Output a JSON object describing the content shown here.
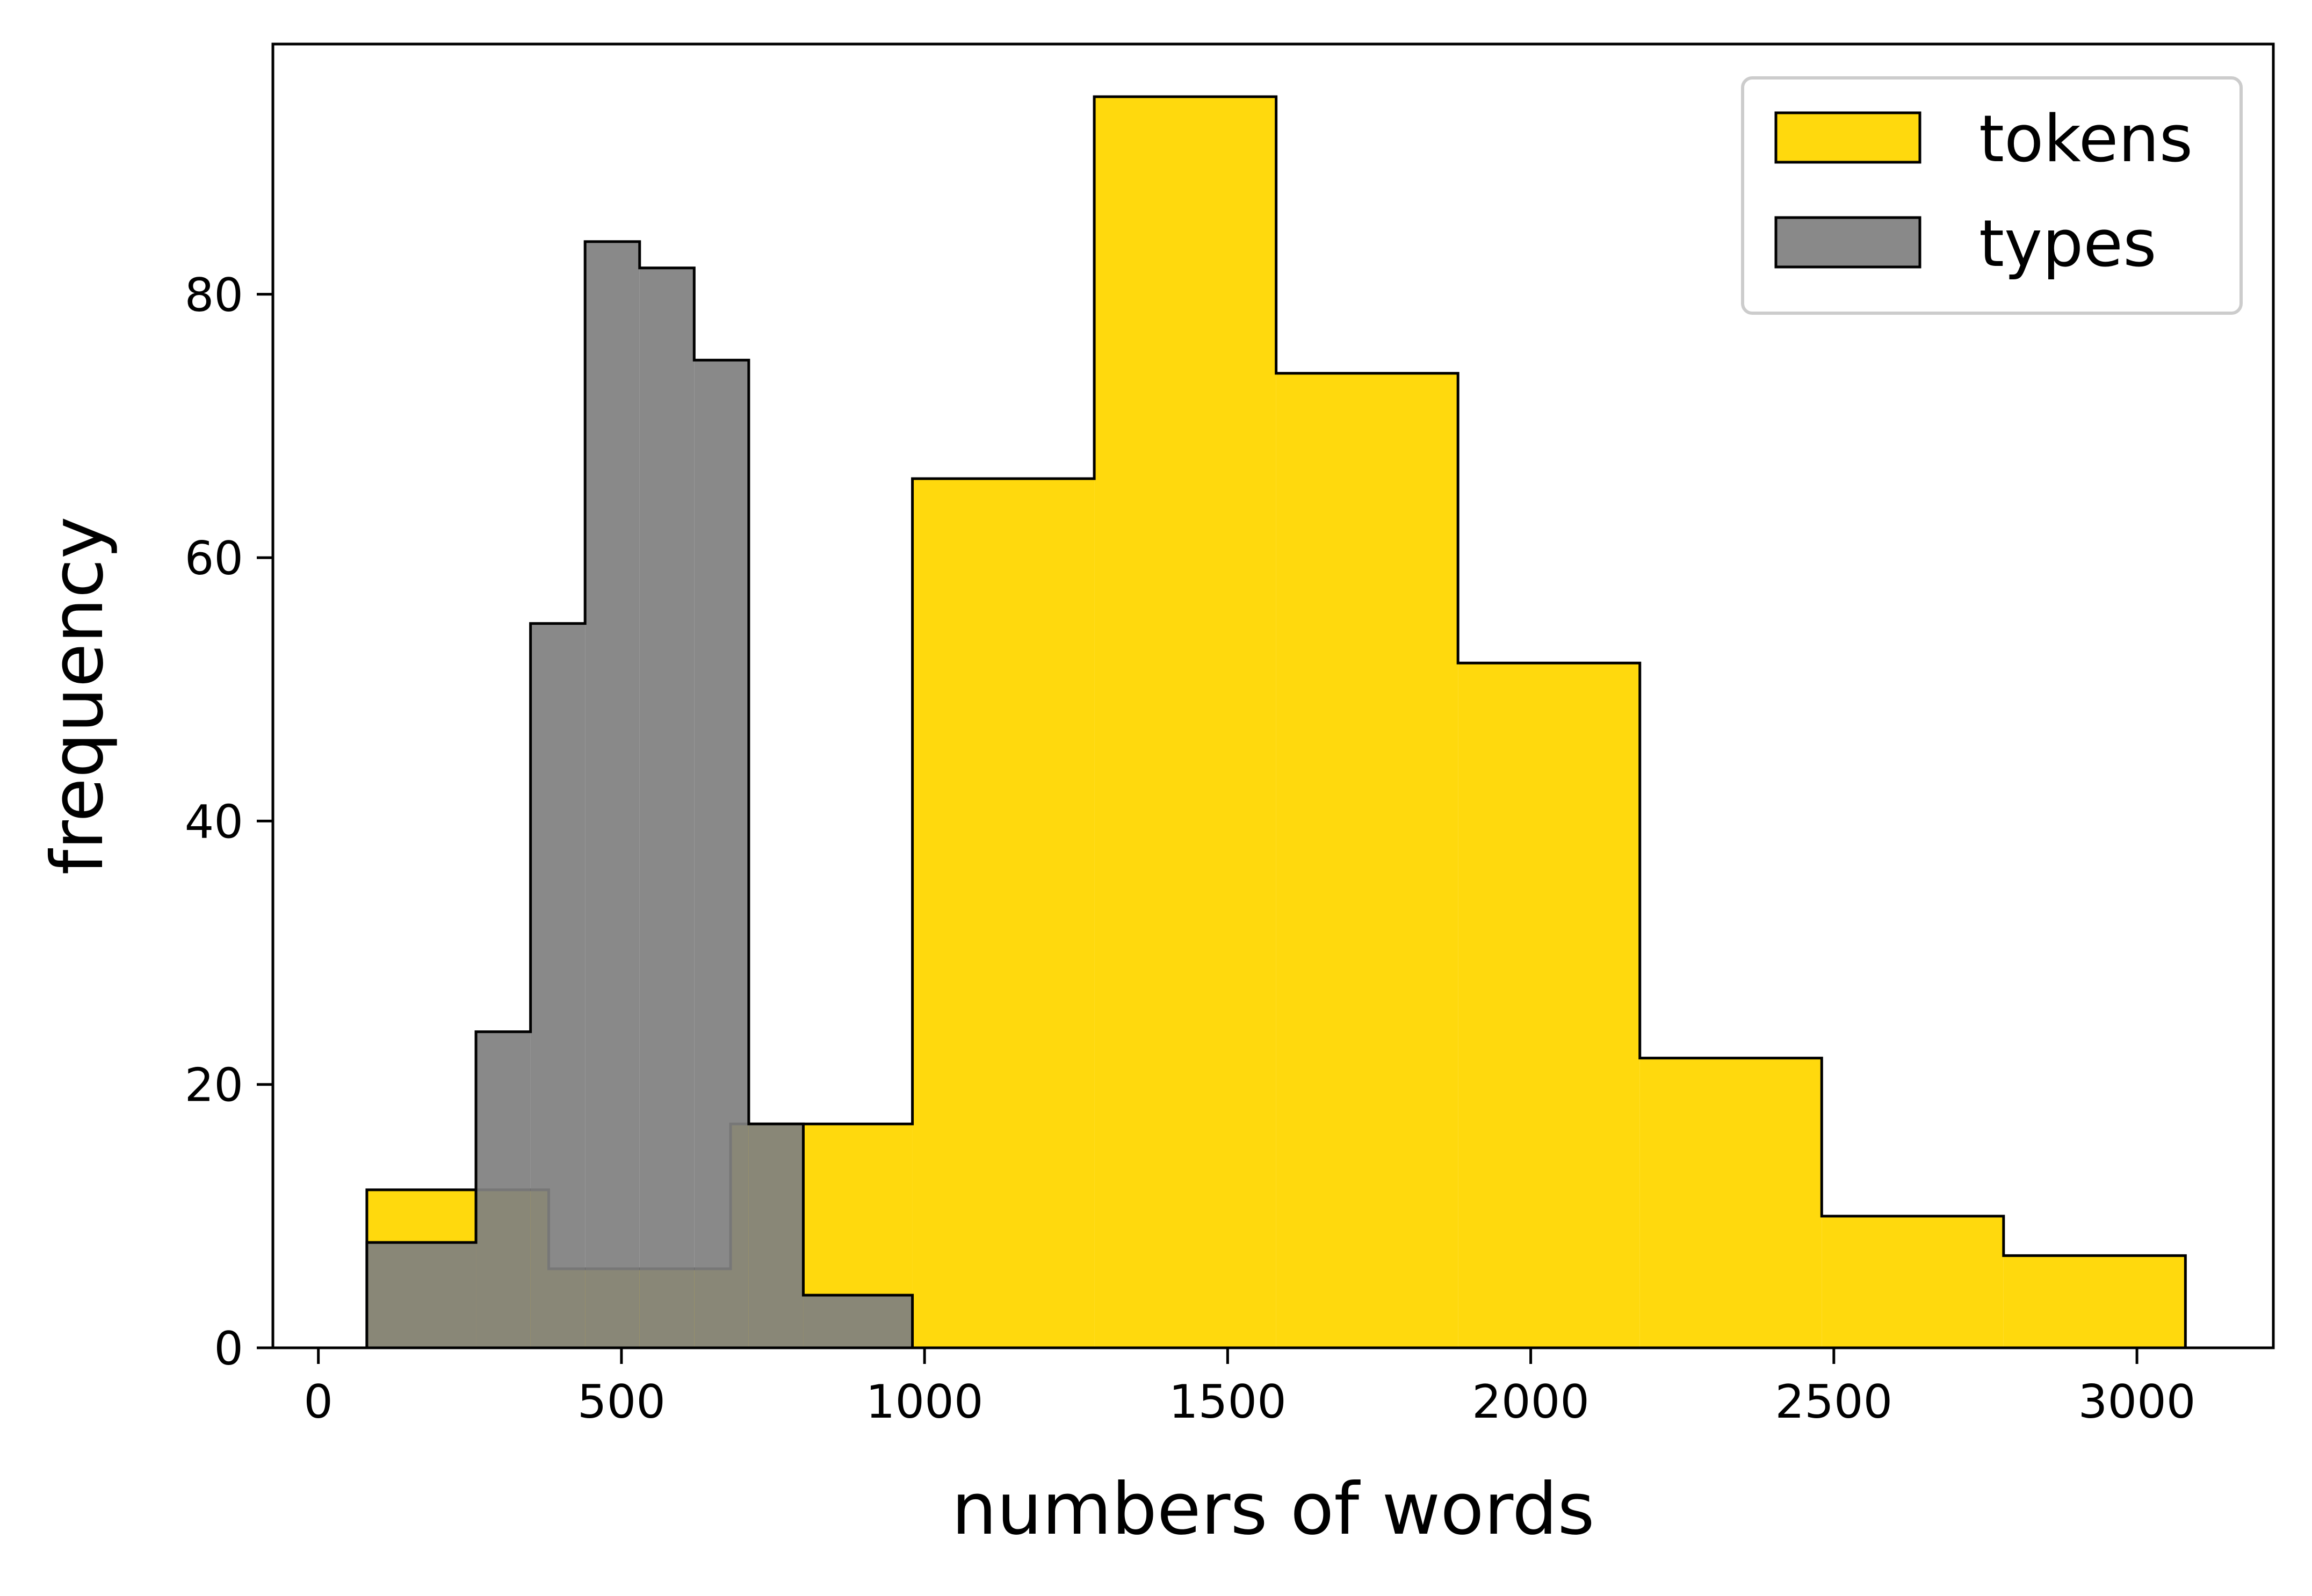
{
  "chart_data": {
    "type": "histogram",
    "title": "",
    "xlabel": "numbers of words",
    "ylabel": "frequency",
    "xlim": [
      -75,
      3225
    ],
    "ylim": [
      0,
      99
    ],
    "xticks": [
      {
        "value": 0,
        "label": "0"
      },
      {
        "value": 500,
        "label": "500"
      },
      {
        "value": 1000,
        "label": "1000"
      },
      {
        "value": 1500,
        "label": "1500"
      },
      {
        "value": 2000,
        "label": "2000"
      },
      {
        "value": 2500,
        "label": "2500"
      },
      {
        "value": 3000,
        "label": "3000"
      }
    ],
    "yticks": [
      {
        "value": 0,
        "label": "0"
      },
      {
        "value": 20,
        "label": "20"
      },
      {
        "value": 40,
        "label": "40"
      },
      {
        "value": 60,
        "label": "60"
      },
      {
        "value": 80,
        "label": "80"
      }
    ],
    "legend_position": "top-right",
    "series": [
      {
        "name": "tokens",
        "color": "#ffd700",
        "opacity": 0.95,
        "edges": [
          80,
          380,
          680,
          980,
          1280,
          1580,
          1880,
          2180,
          2480,
          2780,
          3080
        ],
        "counts": [
          12,
          6,
          17,
          66,
          95,
          74,
          52,
          22,
          10,
          7
        ]
      },
      {
        "name": "types",
        "color": "#808080",
        "opacity": 0.93,
        "edges": [
          80,
          260,
          350,
          440,
          530,
          620,
          710,
          800,
          890,
          980
        ],
        "counts": [
          8,
          24,
          55,
          84,
          82,
          75,
          17,
          4,
          4
        ]
      }
    ]
  }
}
